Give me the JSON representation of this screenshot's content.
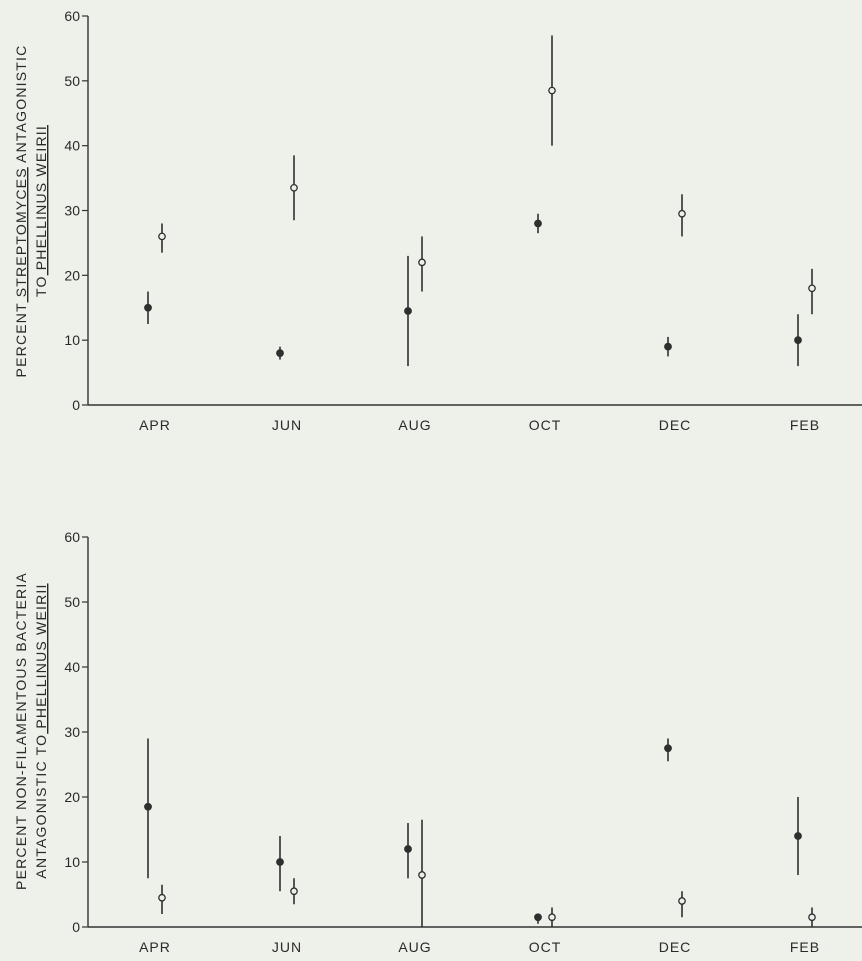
{
  "chart_data": [
    {
      "type": "scatter",
      "categories": [
        "APR",
        "JUN",
        "AUG",
        "OCT",
        "DEC",
        "FEB"
      ],
      "ylim": [
        0,
        60
      ],
      "yticks": [
        "0",
        "10",
        "20",
        "30",
        "40",
        "50",
        "60"
      ],
      "ylabel_parts": [
        "PERCENT",
        "STREPTOMYCES",
        "ANTAGONISTIC",
        "TO",
        "PHELLINUS",
        "WEIRII"
      ],
      "grid": false,
      "series": [
        {
          "marker": "filled",
          "values": [
            15,
            8,
            14.5,
            28,
            9,
            10
          ],
          "err_low": [
            12.5,
            7,
            6,
            26.5,
            7.5,
            6
          ],
          "err_high": [
            17.5,
            9,
            23,
            29.5,
            10.5,
            14
          ]
        },
        {
          "marker": "open",
          "values": [
            26,
            33.5,
            22,
            48.5,
            29.5,
            18
          ],
          "err_low": [
            23.5,
            28.5,
            17.5,
            40,
            26,
            14
          ],
          "err_high": [
            28,
            38.5,
            26,
            57,
            32.5,
            21
          ]
        }
      ]
    },
    {
      "type": "scatter",
      "categories": [
        "APR",
        "JUN",
        "AUG",
        "OCT",
        "DEC",
        "FEB"
      ],
      "ylim": [
        0,
        60
      ],
      "yticks": [
        "0",
        "10",
        "20",
        "30",
        "40",
        "50",
        "60"
      ],
      "ylabel_parts": [
        "PERCENT NON-FILAMENTOUS BACTERIA",
        "ANTAGONISTIC TO",
        "PHELLINUS",
        "WEIRII"
      ],
      "grid": false,
      "series": [
        {
          "marker": "filled",
          "values": [
            18.5,
            10,
            12,
            1.5,
            27.5,
            14
          ],
          "err_low": [
            7.5,
            5.5,
            7.5,
            0.5,
            25.5,
            8
          ],
          "err_high": [
            29,
            14,
            16,
            2,
            29,
            20
          ]
        },
        {
          "marker": "open",
          "values": [
            4.5,
            5.5,
            8,
            1.5,
            4,
            1.5
          ],
          "err_low": [
            2,
            3.5,
            0,
            0,
            1.5,
            0
          ],
          "err_high": [
            6.5,
            7.5,
            16.5,
            3,
            5.5,
            3
          ]
        }
      ]
    }
  ]
}
